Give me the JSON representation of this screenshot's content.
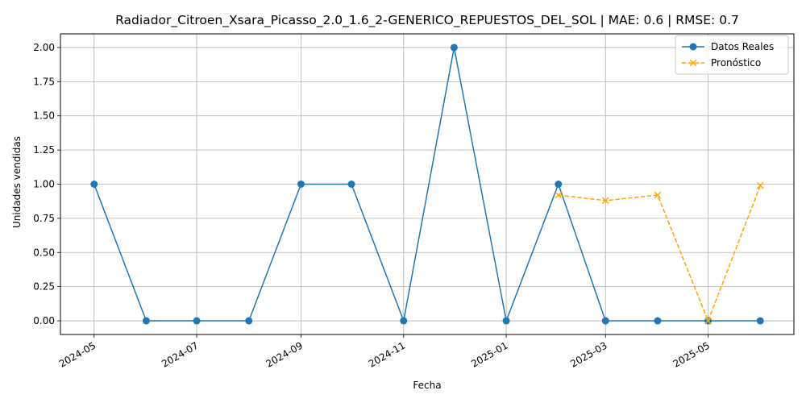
{
  "chart_data": {
    "type": "line",
    "title": "Radiador_Citroen_Xsara_Picasso_2.0_1.6_2-GENERICO_REPUESTOS_DEL_SOL | MAE: 0.6 | RMSE: 0.7",
    "xlabel": "Fecha",
    "ylabel": "Unidades vendidas",
    "ylim": [
      -0.1,
      2.1
    ],
    "xlim": [
      "2024-04-11",
      "2025-06-21"
    ],
    "grid": true,
    "legend_position": "top-right",
    "x_ticks": [
      "2024-05",
      "2024-07",
      "2024-09",
      "2024-11",
      "2025-01",
      "2025-03",
      "2025-05"
    ],
    "y_ticks": [
      "0.00",
      "0.25",
      "0.50",
      "0.75",
      "1.00",
      "1.25",
      "1.50",
      "1.75",
      "2.00"
    ],
    "series": [
      {
        "name": "Datos Reales",
        "color": "#1f77b4",
        "style": "solid",
        "marker": "circle",
        "x": [
          "2024-05-01",
          "2024-06-01",
          "2024-07-01",
          "2024-08-01",
          "2024-09-01",
          "2024-10-01",
          "2024-11-01",
          "2024-12-01",
          "2025-01-01",
          "2025-02-01",
          "2025-03-01",
          "2025-04-01",
          "2025-05-01",
          "2025-06-01"
        ],
        "values": [
          1,
          0,
          0,
          0,
          1,
          1,
          0,
          2,
          0,
          1,
          0,
          0,
          0,
          0
        ]
      },
      {
        "name": "Pronóstico",
        "color": "#ffa500",
        "style": "dashed",
        "marker": "x",
        "x": [
          "2025-02-01",
          "2025-03-01",
          "2025-04-01",
          "2025-05-01",
          "2025-06-01"
        ],
        "values": [
          0.92,
          0.88,
          0.92,
          0.0,
          0.99
        ]
      }
    ]
  }
}
